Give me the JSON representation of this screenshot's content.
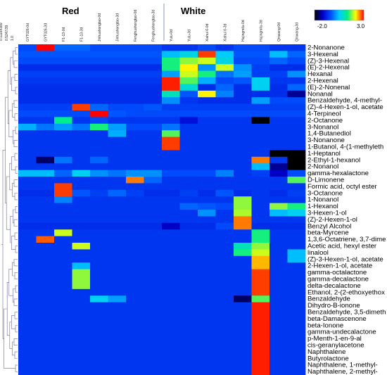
{
  "chart_data": {
    "type": "heatmap",
    "groups": [
      "Red",
      "White"
    ],
    "columns": [
      "GYT026-0d",
      "GYT026-3d",
      "F1-13-0d",
      "F1-13-3d",
      "Jinhuahongtao-0d",
      "Jinhuahongtao-3d",
      "Fenghuahongtao-0d",
      "Fenghuahongtao-3d",
      "Yulu-0d",
      "Yulu-3d",
      "Xiahui 6-0d",
      "Xiahui 6-3d",
      "Hujingmilu-0d",
      "Hujingmilu-3d",
      "Qinwang-0d",
      "Qinwang-3d"
    ],
    "rows": [
      "2-Nonanone",
      "3-Hexenal",
      "(Z)-3-Hexenal",
      "(E)-2-Hexenal",
      "Hexanal",
      "2-Hexenal",
      "(E)-2-Nonenal",
      "Nonanal",
      "Benzaldehyde, 4-methyl-",
      "(Z)-4-Hexen-1-ol, acetate",
      "4-Terpineol",
      "2-Octanone",
      "3-Nonanol",
      "1,4-Butanediol",
      "3-Nonanone",
      "1-Butanol, 4-(1-methyleth",
      "1-Heptanol",
      "2-Ethyl-1-hexanol",
      "2-Nonanol",
      "gamma-hexalactone",
      "D-Limonene",
      "Formic acid, octyl ester",
      "3-Octanone",
      "1-Nonanol",
      "1-Hexanol",
      "3-Hexen-1-ol",
      "(Z)-2-Hexen-1-ol",
      "Benzyl Alcohol",
      "beta-Myrcene",
      "1,3,6-Octatriene, 3,7-dime",
      "Acetic acid, hexyl ester",
      "linalool",
      "(Z)-3-Hexen-1-ol, acetate",
      "2-Hexen-1-ol, acetate",
      "gamma-octalactone",
      "gamma-decalactone",
      "delta-decalactone",
      "Ethanol, 2-(2-ethoxyethox",
      "Benzaldehyde",
      "Dihydro-B-ionone",
      "Benzaldehyde, 3,5-dimeth",
      "beta-Damascenone",
      "beta-Ionone",
      "gamma-undecalactone",
      "p-Menth-1-en-9-al",
      "cis-geranylacetone",
      "Naphthalene",
      "Butyrolactone",
      "Naphthalene, 1-methyl-",
      "Naphthalene, 2-methyl-"
    ],
    "values": [
      [
        -0.4,
        3.0,
        -0.2,
        -0.2,
        -0.4,
        -0.4,
        -0.4,
        -0.4,
        -0.6,
        -0.6,
        -0.4,
        -0.6,
        -0.4,
        -0.4,
        -0.6,
        -0.6
      ],
      [
        -0.3,
        -0.3,
        -0.3,
        -0.3,
        -0.3,
        -0.3,
        -0.3,
        -0.3,
        0.4,
        0.7,
        2.8,
        0.5,
        -0.3,
        -0.3,
        0.4,
        -0.2
      ],
      [
        -0.4,
        -0.4,
        -0.4,
        -0.4,
        -0.4,
        -0.4,
        -0.4,
        -0.4,
        1.4,
        1.8,
        2.0,
        0.7,
        -0.4,
        -0.4,
        -0.2,
        -0.4
      ],
      [
        -0.7,
        -0.7,
        -0.7,
        -0.7,
        -0.7,
        -0.7,
        -0.7,
        -0.7,
        1.4,
        2.2,
        0.1,
        2.0,
        0.1,
        -0.5,
        -0.7,
        -0.7
      ],
      [
        -0.5,
        -0.5,
        -0.5,
        -0.5,
        -0.5,
        -0.5,
        -0.5,
        -0.5,
        0.2,
        2.0,
        1.4,
        -0.1,
        0.2,
        -0.5,
        -0.5,
        0.1
      ],
      [
        -0.6,
        -0.6,
        -0.6,
        -0.6,
        -0.6,
        -0.6,
        -0.6,
        -0.6,
        2.9,
        1.6,
        0.3,
        -0.4,
        -0.3,
        0.6,
        -0.6,
        -0.6
      ],
      [
        -0.7,
        -0.7,
        -0.7,
        -0.7,
        -0.7,
        -0.7,
        -0.7,
        -0.7,
        2.9,
        0.8,
        -0.7,
        -0.2,
        -0.7,
        0.6,
        -0.7,
        -0.2
      ],
      [
        -0.7,
        -0.7,
        -0.7,
        -0.7,
        -0.7,
        -0.7,
        -0.7,
        -0.7,
        1.0,
        -0.3,
        2.2,
        0.0,
        -0.7,
        -0.7,
        -0.7,
        -1.4
      ],
      [
        -0.7,
        -0.7,
        -0.7,
        -0.7,
        -0.7,
        -0.7,
        -0.7,
        -0.7,
        0.1,
        -0.6,
        -0.7,
        -0.7,
        -0.7,
        0.2,
        -0.4,
        -0.4
      ],
      [
        -0.5,
        -0.5,
        -0.5,
        2.8,
        -0.2,
        -0.4,
        -0.4,
        -0.3,
        -0.5,
        -0.5,
        -0.5,
        -0.5,
        -0.5,
        -0.5,
        -0.5,
        -0.5
      ],
      [
        -0.4,
        -0.4,
        -0.4,
        -0.4,
        3.0,
        -0.3,
        -0.4,
        -0.4,
        -0.4,
        -0.4,
        -0.4,
        -0.4,
        -0.4,
        -0.4,
        -0.4,
        -0.4
      ],
      [
        -0.6,
        -0.6,
        1.3,
        -0.6,
        -0.4,
        -0.6,
        -0.6,
        -0.6,
        -0.6,
        -1.0,
        -0.6,
        -0.6,
        -0.6,
        -2.2,
        -0.6,
        -0.6
      ],
      [
        0.3,
        -0.1,
        0.2,
        -0.1,
        1.4,
        0.2,
        -0.4,
        -0.4,
        -0.1,
        -0.6,
        -0.6,
        -0.6,
        -0.6,
        -0.6,
        -0.6,
        -0.6
      ],
      [
        -0.6,
        -0.6,
        -0.6,
        -0.6,
        -0.6,
        0.3,
        -0.6,
        -0.6,
        1.6,
        -0.6,
        -0.6,
        -0.6,
        -0.6,
        -0.6,
        -0.6,
        -0.6
      ],
      [
        -0.6,
        -0.6,
        -0.6,
        -0.6,
        -0.6,
        -0.6,
        -0.6,
        -0.6,
        2.8,
        -0.6,
        -0.6,
        -0.6,
        -0.6,
        -0.6,
        -0.6,
        -0.6
      ],
      [
        -0.6,
        -0.6,
        -0.6,
        -0.6,
        -0.6,
        -0.6,
        -0.6,
        -0.6,
        2.8,
        -0.6,
        -0.6,
        -0.6,
        -0.6,
        -0.6,
        -0.6,
        -0.6
      ],
      [
        -0.6,
        -0.6,
        -0.6,
        -0.6,
        -0.6,
        -0.6,
        -0.6,
        -0.6,
        -0.6,
        -0.6,
        -0.6,
        -0.6,
        -0.6,
        -0.6,
        -2.2,
        -2.2
      ],
      [
        -0.6,
        -1.6,
        -0.1,
        -0.6,
        -0.2,
        -0.6,
        -0.6,
        -0.6,
        -0.6,
        -0.6,
        -0.6,
        -0.6,
        -0.6,
        2.6,
        -0.6,
        -2.2
      ],
      [
        -0.6,
        -0.6,
        -0.6,
        -0.6,
        -0.6,
        -0.6,
        -0.6,
        -0.6,
        -0.6,
        -0.6,
        -0.6,
        -0.6,
        -0.6,
        0.4,
        -1.4,
        -2.2
      ],
      [
        0.4,
        0.4,
        -0.2,
        0.6,
        0.1,
        -0.1,
        0.1,
        0.1,
        -0.4,
        -0.4,
        -0.4,
        0.0,
        -0.6,
        -0.5,
        -1.2,
        -0.4
      ],
      [
        -0.6,
        -0.6,
        -0.6,
        -0.6,
        -0.6,
        -0.6,
        2.6,
        -0.2,
        -0.6,
        -0.6,
        -0.6,
        -0.6,
        -0.6,
        -0.6,
        -0.6,
        1.6
      ],
      [
        -0.6,
        -0.6,
        2.8,
        -0.6,
        -0.6,
        -0.6,
        -0.6,
        -0.6,
        -0.6,
        -0.6,
        -0.6,
        -0.6,
        -0.6,
        -0.6,
        -0.6,
        -0.6
      ],
      [
        -0.7,
        -0.7,
        2.8,
        -0.3,
        -0.5,
        -0.2,
        -0.5,
        -0.7,
        -0.7,
        -0.5,
        -0.7,
        -0.3,
        -0.7,
        -0.6,
        -0.7,
        -0.5
      ],
      [
        -0.6,
        -0.6,
        0.0,
        -0.6,
        -0.6,
        -0.6,
        -0.6,
        -0.6,
        -0.6,
        -0.6,
        -0.6,
        -0.6,
        1.8,
        -0.6,
        -0.6,
        -0.6
      ],
      [
        -0.6,
        -0.6,
        -0.6,
        -0.6,
        -0.6,
        -0.6,
        -0.6,
        -0.6,
        -0.6,
        -0.2,
        -0.3,
        -0.4,
        1.8,
        -0.6,
        1.8,
        1.4
      ],
      [
        -0.6,
        -0.6,
        -0.6,
        -0.6,
        -0.6,
        -0.6,
        -0.6,
        -0.6,
        -0.6,
        -0.6,
        0.1,
        -0.6,
        1.9,
        -0.6,
        0.4,
        0.6
      ],
      [
        -0.6,
        -0.6,
        -0.6,
        -0.6,
        -0.6,
        -0.6,
        -0.6,
        -0.6,
        -0.6,
        -0.6,
        -0.6,
        -0.6,
        2.6,
        -0.6,
        -0.6,
        -0.6
      ],
      [
        -0.7,
        -0.7,
        -0.7,
        -0.7,
        -0.7,
        -0.7,
        -0.7,
        -0.7,
        -1.2,
        -0.7,
        -0.7,
        -0.4,
        2.6,
        -0.7,
        -0.7,
        -0.7
      ],
      [
        -0.6,
        -0.6,
        2.0,
        -0.6,
        -0.6,
        -0.6,
        -0.6,
        -0.6,
        -0.6,
        -0.6,
        -0.6,
        -0.6,
        -0.6,
        1.4,
        -0.6,
        -0.6
      ],
      [
        -0.6,
        2.7,
        -0.6,
        -0.6,
        -0.6,
        -0.6,
        -0.6,
        -0.6,
        -0.6,
        -0.6,
        -0.6,
        -0.6,
        -0.6,
        1.4,
        -0.6,
        -0.6
      ],
      [
        -0.6,
        -0.6,
        -0.6,
        2.0,
        -0.6,
        -0.6,
        -0.6,
        -0.6,
        -0.6,
        -0.6,
        -0.6,
        -0.6,
        1.0,
        1.8,
        -0.6,
        -0.6
      ],
      [
        -0.6,
        -0.6,
        -0.6,
        -0.6,
        -0.6,
        -0.6,
        -0.6,
        -0.6,
        -0.6,
        -0.6,
        -0.6,
        -0.6,
        1.4,
        2.0,
        -0.6,
        0.4
      ],
      [
        -0.6,
        -0.6,
        -0.6,
        -0.6,
        -0.6,
        -0.6,
        -0.6,
        -0.6,
        -0.6,
        -0.6,
        -0.6,
        -0.6,
        -0.6,
        2.4,
        -0.6,
        0.4
      ],
      [
        -0.6,
        -0.6,
        -0.6,
        0.4,
        -0.6,
        -0.6,
        -0.6,
        -0.6,
        -0.6,
        -0.6,
        -0.6,
        -0.6,
        -0.6,
        2.4,
        -0.6,
        -0.6
      ],
      [
        -0.6,
        -0.6,
        -0.6,
        1.8,
        -0.6,
        -0.6,
        -0.6,
        -0.6,
        -0.6,
        -0.6,
        -0.6,
        -0.6,
        -0.6,
        2.8,
        -0.6,
        -0.6
      ],
      [
        -0.6,
        -0.6,
        -0.6,
        1.8,
        -0.6,
        -0.6,
        -0.6,
        -0.6,
        -0.6,
        -0.6,
        -0.6,
        -0.6,
        -0.6,
        2.8,
        -0.6,
        -0.6
      ],
      [
        -0.6,
        -0.6,
        -0.6,
        1.8,
        -0.6,
        -0.6,
        -0.6,
        -0.6,
        -0.6,
        -0.6,
        -0.6,
        -0.6,
        -0.6,
        2.8,
        -0.6,
        -0.6
      ],
      [
        -0.6,
        -0.6,
        -0.6,
        -0.6,
        -0.6,
        -0.6,
        -0.6,
        -0.6,
        -0.6,
        -0.6,
        -0.6,
        -0.6,
        -0.6,
        2.8,
        -0.6,
        -0.6
      ],
      [
        -0.6,
        -0.6,
        -0.6,
        -0.6,
        0.6,
        0.2,
        -0.6,
        -0.6,
        -0.6,
        -0.6,
        -0.6,
        -0.6,
        -1.6,
        1.6,
        -0.6,
        -0.6
      ],
      [
        -0.6,
        -0.6,
        -0.6,
        -0.6,
        -0.6,
        -0.6,
        -0.6,
        -0.6,
        -0.6,
        -0.6,
        -0.6,
        -0.6,
        -0.6,
        2.9,
        -0.6,
        -0.6
      ],
      [
        -0.6,
        -0.6,
        -0.6,
        -0.6,
        -0.6,
        -0.6,
        -0.6,
        -0.6,
        -0.6,
        -0.6,
        -0.6,
        -0.6,
        -0.6,
        2.9,
        -0.6,
        -0.6
      ],
      [
        -0.6,
        -0.6,
        -0.6,
        -0.6,
        -0.6,
        -0.6,
        -0.6,
        -0.6,
        -0.6,
        -0.6,
        -0.6,
        -0.6,
        -0.6,
        2.9,
        -0.6,
        -0.6
      ],
      [
        -0.6,
        -0.6,
        -0.6,
        -0.6,
        -0.6,
        -0.6,
        -0.6,
        -0.6,
        -0.6,
        -0.6,
        -0.6,
        -0.6,
        -0.6,
        2.9,
        -0.6,
        -0.6
      ],
      [
        -0.6,
        -0.6,
        -0.6,
        -0.6,
        -0.6,
        -0.6,
        -0.6,
        -0.6,
        -0.6,
        -0.6,
        -0.6,
        -0.6,
        -0.6,
        2.9,
        -0.6,
        -0.6
      ],
      [
        -0.6,
        -0.6,
        -0.6,
        -0.6,
        -0.6,
        -0.6,
        -0.6,
        -0.6,
        -0.6,
        -0.6,
        -0.6,
        -0.6,
        -0.6,
        2.9,
        -0.6,
        -0.6
      ],
      [
        -0.6,
        -0.6,
        -0.6,
        -0.6,
        -0.6,
        -0.6,
        -0.6,
        -0.6,
        -0.6,
        -0.6,
        -0.6,
        -0.6,
        -0.6,
        2.9,
        -0.6,
        -0.6
      ],
      [
        -0.6,
        -0.6,
        -0.6,
        -0.6,
        -0.6,
        -0.6,
        -0.6,
        -0.6,
        -0.6,
        -0.6,
        -0.6,
        -0.6,
        -0.6,
        2.9,
        -0.6,
        -0.6
      ],
      [
        -0.6,
        -0.6,
        -0.6,
        -0.6,
        -0.6,
        -0.6,
        -0.6,
        -0.6,
        -0.6,
        -0.6,
        -0.6,
        -0.6,
        -0.6,
        2.9,
        -0.6,
        -0.6
      ],
      [
        -0.6,
        -0.6,
        -0.6,
        -0.6,
        -0.6,
        -0.6,
        -0.6,
        -0.6,
        -0.6,
        -0.6,
        -0.6,
        -0.6,
        -0.6,
        2.9,
        -0.6,
        -0.6
      ],
      [
        -0.6,
        -0.6,
        -0.6,
        -0.6,
        -0.6,
        -0.6,
        -0.6,
        -0.6,
        -0.6,
        -0.6,
        -0.6,
        -0.6,
        -0.6,
        2.9,
        -0.6,
        -0.6
      ]
    ],
    "color_scale": {
      "min": -2.0,
      "max": 3.0,
      "min_label": "-2.0",
      "max_label": "3.0",
      "colors": [
        "#000000",
        "#0000cc",
        "#0050ff",
        "#00ccff",
        "#00ee88",
        "#ffff00",
        "#ff0000"
      ]
    },
    "dendrogram_axis_labels": [
      "0.11164389",
      "0.5247/39",
      "1.0"
    ],
    "legend_position": "top-right"
  }
}
